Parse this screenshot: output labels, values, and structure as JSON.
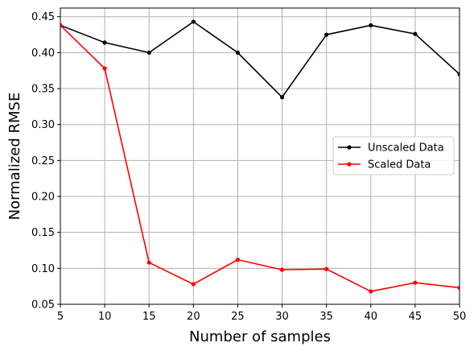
{
  "chart_data": {
    "type": "line",
    "title": "",
    "xlabel": "Number of samples",
    "ylabel": "Normalized RMSE",
    "x": [
      5,
      10,
      15,
      20,
      25,
      30,
      35,
      40,
      45,
      50
    ],
    "xlim": [
      5,
      50
    ],
    "ylim": [
      0.05,
      0.462
    ],
    "xticks": [
      5,
      10,
      15,
      20,
      25,
      30,
      35,
      40,
      45,
      50
    ],
    "yticks": [
      0.05,
      0.1,
      0.15,
      0.2,
      0.25,
      0.3,
      0.35,
      0.4,
      0.45
    ],
    "ytick_labels": [
      "0.05",
      "0.10",
      "0.15",
      "0.20",
      "0.25",
      "0.30",
      "0.35",
      "0.40",
      "0.45"
    ],
    "grid": true,
    "legend_position": "center-right",
    "series": [
      {
        "name": "Unscaled Data",
        "color": "#000000",
        "marker": "dot",
        "values": [
          0.438,
          0.414,
          0.4,
          0.443,
          0.4,
          0.338,
          0.425,
          0.438,
          0.426,
          0.37
        ]
      },
      {
        "name": "Scaled Data",
        "color": "#ff0000",
        "marker": "dot",
        "values": [
          0.438,
          0.378,
          0.108,
          0.078,
          0.112,
          0.098,
          0.099,
          0.068,
          0.08,
          0.073
        ]
      }
    ]
  }
}
